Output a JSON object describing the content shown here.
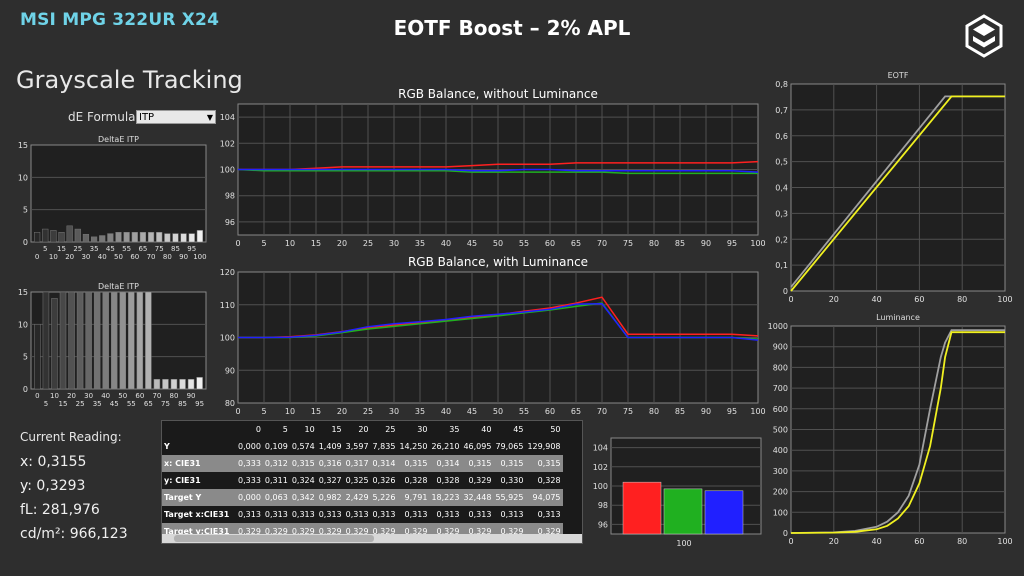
{
  "brand": "MSI MPG 322UR X24",
  "title": "EOTF Boost – 2% APL",
  "logo_icon": "hexagon-logo-icon",
  "section_title": "Grayscale Tracking",
  "de_formula": {
    "label": "dE Formula:",
    "value": "ITP"
  },
  "current_reading": {
    "heading": "Current Reading:",
    "lines": [
      "x: 0,3155",
      "y: 0,3293",
      "fL: 281,976",
      "cd/m²: 966,123"
    ]
  },
  "colors": {
    "red": "#ff2020",
    "green": "#20b020",
    "blue": "#2020ff",
    "yellow": "#f0f020",
    "gray": "#a0a0a0",
    "plot_bg": "#202020",
    "grid": "#505050"
  },
  "table": {
    "columns": [
      "",
      "0",
      "5",
      "10",
      "15",
      "20",
      "25",
      "30",
      "35",
      "40",
      "45",
      "50"
    ],
    "rows": [
      {
        "label": "Y",
        "values": [
          "0,000",
          "0,109",
          "0,574",
          "1,409",
          "3,597",
          "7,835",
          "14,250",
          "26,210",
          "46,095",
          "79,065",
          "129,908"
        ]
      },
      {
        "label": "x: CIE31",
        "values": [
          "0,333",
          "0,312",
          "0,315",
          "0,316",
          "0,317",
          "0,314",
          "0,315",
          "0,314",
          "0,315",
          "0,315",
          "0,315"
        ]
      },
      {
        "label": "y: CIE31",
        "values": [
          "0,333",
          "0,311",
          "0,324",
          "0,327",
          "0,325",
          "0,326",
          "0,328",
          "0,328",
          "0,329",
          "0,330",
          "0,328"
        ]
      },
      {
        "label": "Target Y",
        "values": [
          "0,000",
          "0,063",
          "0,342",
          "0,982",
          "2,429",
          "5,226",
          "9,791",
          "18,223",
          "32,448",
          "55,925",
          "94,075"
        ]
      },
      {
        "label": "Target x:CIE31",
        "values": [
          "0,313",
          "0,313",
          "0,313",
          "0,313",
          "0,313",
          "0,313",
          "0,313",
          "0,313",
          "0,313",
          "0,313",
          "0,313"
        ]
      },
      {
        "label": "Target y:CIE31",
        "values": [
          "0,329",
          "0,329",
          "0,329",
          "0,329",
          "0,329",
          "0,329",
          "0,329",
          "0,329",
          "0,329",
          "0,329",
          "0,329"
        ]
      }
    ]
  },
  "chart_data": [
    {
      "id": "deltae1",
      "type": "bar",
      "title": "DeltaE ITP",
      "ylim": [
        0,
        15
      ],
      "yticks": [
        0,
        5,
        10,
        15
      ],
      "x": [
        0,
        5,
        10,
        15,
        20,
        25,
        30,
        35,
        40,
        45,
        50,
        55,
        60,
        65,
        70,
        75,
        80,
        85,
        90,
        95,
        100
      ],
      "xtick_labels": [
        "5",
        "15",
        "25",
        "35",
        "45",
        "55",
        "65",
        "75",
        "85",
        "95"
      ],
      "xtick_labels_b": [
        "0",
        "10",
        "20",
        "30",
        "40",
        "50",
        "60",
        "70",
        "80",
        "90",
        "100"
      ],
      "values": [
        1.5,
        2.0,
        1.8,
        1.5,
        2.5,
        2.0,
        1.2,
        0.8,
        1.0,
        1.3,
        1.5,
        1.5,
        1.5,
        1.5,
        1.5,
        1.5,
        1.3,
        1.3,
        1.3,
        1.3,
        1.8
      ]
    },
    {
      "id": "deltae2",
      "type": "bar",
      "title": "DeltaE ITP",
      "ylim": [
        0,
        15
      ],
      "yticks": [
        0,
        5,
        10,
        15
      ],
      "x": [
        5,
        10,
        15,
        20,
        25,
        30,
        35,
        40,
        45,
        50,
        55,
        60,
        65,
        70,
        75,
        80,
        85,
        90,
        95,
        100
      ],
      "xtick_labels": [
        "0",
        "10",
        "20",
        "30",
        "40",
        "50",
        "60",
        "70",
        "80",
        "90"
      ],
      "xtick_labels_b": [
        "5",
        "15",
        "25",
        "35",
        "45",
        "55",
        "65",
        "75",
        "85",
        "95"
      ],
      "values": [
        10,
        15,
        14,
        15,
        15,
        15,
        15,
        15,
        15,
        15,
        15,
        15,
        15,
        15,
        1.5,
        1.5,
        1.5,
        1.5,
        1.5,
        1.8
      ]
    },
    {
      "id": "rgb1",
      "type": "line",
      "title": "RGB Balance, without Luminance",
      "x": [
        0,
        5,
        10,
        15,
        20,
        25,
        30,
        35,
        40,
        45,
        50,
        55,
        60,
        65,
        70,
        75,
        80,
        85,
        90,
        95,
        100
      ],
      "xlim": [
        0,
        100
      ],
      "ylim": [
        95,
        105
      ],
      "yticks": [
        96,
        98,
        100,
        102,
        104
      ],
      "xticks": [
        0,
        5,
        10,
        15,
        20,
        25,
        30,
        35,
        40,
        45,
        50,
        55,
        60,
        65,
        70,
        75,
        80,
        85,
        90,
        95,
        100
      ],
      "series": [
        {
          "color": "red",
          "values": [
            100,
            100,
            100,
            100.1,
            100.2,
            100.2,
            100.2,
            100.2,
            100.2,
            100.3,
            100.4,
            100.4,
            100.4,
            100.5,
            100.5,
            100.5,
            100.5,
            100.5,
            100.5,
            100.5,
            100.6
          ]
        },
        {
          "color": "green",
          "values": [
            100,
            99.9,
            99.9,
            99.9,
            99.9,
            99.9,
            99.9,
            99.9,
            99.9,
            99.8,
            99.8,
            99.8,
            99.8,
            99.8,
            99.8,
            99.7,
            99.7,
            99.7,
            99.7,
            99.7,
            99.7
          ]
        },
        {
          "color": "blue",
          "values": [
            100,
            100,
            100,
            100,
            100,
            100,
            100,
            100,
            100,
            99.9,
            99.9,
            100,
            100,
            99.9,
            99.9,
            99.9,
            99.9,
            99.9,
            99.9,
            99.9,
            99.8
          ]
        }
      ]
    },
    {
      "id": "rgb2",
      "type": "line",
      "title": "RGB Balance, with Luminance",
      "x": [
        0,
        5,
        10,
        15,
        20,
        25,
        30,
        35,
        40,
        45,
        50,
        55,
        60,
        65,
        70,
        75,
        80,
        85,
        90,
        95,
        100
      ],
      "xlim": [
        0,
        100
      ],
      "ylim": [
        80,
        120
      ],
      "yticks": [
        80,
        90,
        100,
        110,
        120
      ],
      "xticks": [
        0,
        5,
        10,
        15,
        20,
        25,
        30,
        35,
        40,
        45,
        50,
        55,
        60,
        65,
        70,
        75,
        80,
        85,
        90,
        95,
        100
      ],
      "series": [
        {
          "color": "red",
          "values": [
            100,
            100,
            100.2,
            100.8,
            101.8,
            103,
            103.8,
            104.5,
            105.3,
            106.2,
            107,
            108,
            109,
            110.5,
            112.3,
            101,
            101,
            101,
            101,
            101,
            100.5
          ]
        },
        {
          "color": "green",
          "values": [
            100,
            100,
            100,
            100.5,
            101.5,
            102.6,
            103.4,
            104.2,
            105,
            105.8,
            106.6,
            107.5,
            108.4,
            109.5,
            110.5,
            100,
            100,
            100,
            100,
            100,
            99.5
          ]
        },
        {
          "color": "blue",
          "values": [
            100,
            100,
            100.1,
            100.7,
            101.7,
            103.3,
            104.2,
            104.8,
            105.5,
            106.5,
            107.1,
            107.8,
            108.6,
            110.2,
            110.3,
            100,
            100,
            100,
            100,
            100,
            99.2
          ]
        }
      ]
    },
    {
      "id": "rgbbar",
      "type": "bar",
      "ylim": [
        95,
        105
      ],
      "yticks": [
        96,
        98,
        100,
        102,
        104
      ],
      "categories": [
        "100"
      ],
      "series": [
        {
          "color": "red",
          "values": [
            100.4
          ]
        },
        {
          "color": "green",
          "values": [
            99.7
          ]
        },
        {
          "color": "blue",
          "values": [
            99.5
          ]
        }
      ]
    },
    {
      "id": "eotf",
      "type": "line",
      "title": "EOTF",
      "xlim": [
        0,
        100
      ],
      "ylim": [
        0,
        0.8
      ],
      "xticks": [
        0,
        20,
        40,
        60,
        80,
        100
      ],
      "yticks": [
        0,
        0.1,
        0.2,
        0.3,
        0.4,
        0.5,
        0.6,
        0.7,
        0.8
      ],
      "ytick_labels": [
        "0",
        "0,1",
        "0,2",
        "0,3",
        "0,4",
        "0,5",
        "0,6",
        "0,7",
        "0,8"
      ],
      "series": [
        {
          "color": "gray",
          "x": [
            0,
            72,
            100
          ],
          "values": [
            0.015,
            0.752,
            0.752
          ]
        },
        {
          "color": "yellow",
          "x": [
            0,
            75,
            100
          ],
          "values": [
            0,
            0.752,
            0.752
          ]
        }
      ]
    },
    {
      "id": "luminance",
      "type": "line",
      "title": "Luminance",
      "xlim": [
        0,
        100
      ],
      "ylim": [
        0,
        1000
      ],
      "xticks": [
        0,
        20,
        40,
        60,
        80,
        100
      ],
      "yticks": [
        0,
        100,
        200,
        300,
        400,
        500,
        600,
        700,
        800,
        900,
        1000
      ],
      "series": [
        {
          "color": "gray",
          "x": [
            0,
            20,
            30,
            40,
            45,
            50,
            55,
            60,
            65,
            70,
            72,
            75,
            100
          ],
          "values": [
            0,
            3,
            10,
            30,
            55,
            100,
            180,
            330,
            600,
            850,
            920,
            980,
            980
          ]
        },
        {
          "color": "yellow",
          "x": [
            0,
            20,
            30,
            40,
            45,
            50,
            55,
            60,
            65,
            70,
            72,
            75,
            100
          ],
          "values": [
            0,
            2,
            6,
            18,
            35,
            70,
            130,
            240,
            420,
            700,
            850,
            970,
            970
          ]
        }
      ]
    }
  ]
}
